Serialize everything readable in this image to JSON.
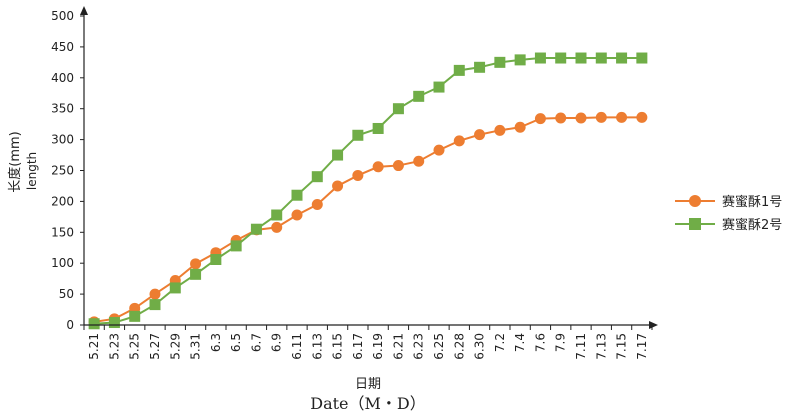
{
  "chart_data": {
    "type": "line",
    "title": "",
    "ylabel_cn": "长度(mm)",
    "ylabel_en": "length",
    "xlabel_cn": "日期",
    "xlabel_en": "Date（M・D）",
    "ylim": [
      0,
      500
    ],
    "yticks": [
      0,
      50,
      100,
      150,
      200,
      250,
      300,
      350,
      400,
      450,
      500
    ],
    "legend_position": "right",
    "categories": [
      "5.21",
      "5.23",
      "5.25",
      "5.27",
      "5.29",
      "5.31",
      "6.3",
      "6.5",
      "6.7",
      "6.9",
      "6.11",
      "6.13",
      "6.15",
      "6.17",
      "6.19",
      "6.21",
      "6.23",
      "6.25",
      "6.28",
      "6.30",
      "7.2",
      "7.4",
      "7.6",
      "7.9",
      "7.11",
      "7.13",
      "7.15",
      "7.17"
    ],
    "series": [
      {
        "name": "赛蜜酥1号",
        "color": "#ed7d31",
        "marker": "circle",
        "values": [
          5,
          10,
          27,
          50,
          72,
          99,
          117,
          137,
          154,
          158,
          178,
          195,
          225,
          242,
          256,
          258,
          265,
          283,
          298,
          308,
          315,
          320,
          334,
          335,
          335,
          336,
          336,
          336
        ]
      },
      {
        "name": "赛蜜酥2号",
        "color": "#70ad47",
        "marker": "square",
        "values": [
          2,
          4,
          14,
          33,
          60,
          82,
          106,
          128,
          155,
          178,
          210,
          240,
          275,
          307,
          318,
          350,
          370,
          385,
          412,
          417,
          425,
          429,
          432,
          432,
          432,
          432,
          432,
          432
        ]
      }
    ]
  }
}
